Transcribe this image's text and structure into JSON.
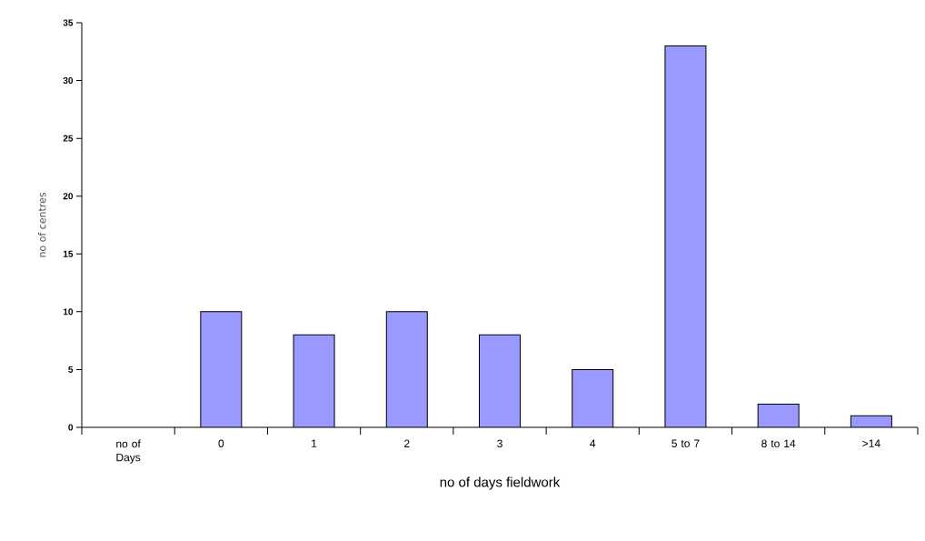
{
  "chart_data": {
    "type": "bar",
    "xlabel": "no of days fieldwork",
    "ylabel": "no of centres",
    "categories": [
      "no of Days",
      "0",
      "1",
      "2",
      "3",
      "4",
      "5 to 7",
      "8 to 14",
      ">14"
    ],
    "values": [
      null,
      10,
      8,
      10,
      8,
      5,
      33,
      2,
      1
    ],
    "color": "#9999ff",
    "ylim": [
      0,
      35
    ],
    "yticks": [
      0,
      5,
      10,
      15,
      20,
      25,
      30,
      35
    ],
    "grid": false
  }
}
